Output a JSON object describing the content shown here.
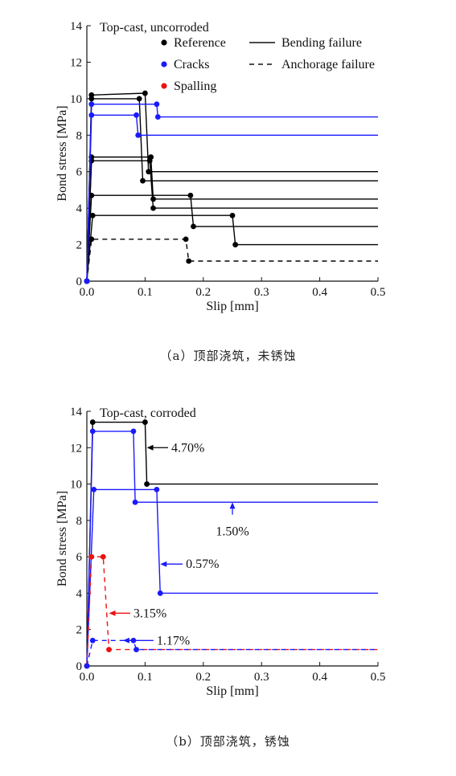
{
  "figure": {
    "captions": [
      "（a）顶部浇筑，未锈蚀",
      "（b）顶部浇筑，锈蚀"
    ]
  },
  "colors": {
    "reference": "#000000",
    "cracks": "#1a1aff",
    "spalling": "#ee1111"
  },
  "chart_data": [
    {
      "type": "line",
      "title": "Top-cast, uncorroded",
      "xlabel": "Slip [mm]",
      "ylabel": "Bond stress [MPa]",
      "xlim": [
        0,
        0.5
      ],
      "ylim": [
        0,
        14
      ],
      "xticks": [
        "0.0",
        "0.1",
        "0.2",
        "0.3",
        "0.4",
        "0.5"
      ],
      "yticks": [
        "0",
        "2",
        "4",
        "6",
        "8",
        "10",
        "12",
        "14"
      ],
      "grid": false,
      "legend": {
        "position": "top",
        "markers": [
          {
            "label": "Reference",
            "color_key": "reference"
          },
          {
            "label": "Cracks",
            "color_key": "cracks"
          },
          {
            "label": "Spalling",
            "color_key": "spalling"
          }
        ],
        "lines": [
          {
            "label": "Bending failure",
            "style": "solid"
          },
          {
            "label": "Anchorage failure",
            "style": "dashed"
          }
        ]
      },
      "series": [
        {
          "group": "reference",
          "style": "solid",
          "x": [
            0,
            0.008,
            0.1,
            0.106,
            0.5
          ],
          "y": [
            0,
            10.2,
            10.3,
            6.0,
            6.0
          ]
        },
        {
          "group": "reference",
          "style": "solid",
          "x": [
            0,
            0.008,
            0.09,
            0.096,
            0.5
          ],
          "y": [
            0,
            10.0,
            10.0,
            5.5,
            5.5
          ]
        },
        {
          "group": "reference",
          "style": "solid",
          "x": [
            0,
            0.008,
            0.11,
            0.114,
            0.5
          ],
          "y": [
            0,
            6.8,
            6.8,
            4.5,
            4.5
          ]
        },
        {
          "group": "reference",
          "style": "solid",
          "x": [
            0,
            0.008,
            0.108,
            0.114,
            0.5
          ],
          "y": [
            0,
            6.6,
            6.6,
            4.0,
            4.0
          ]
        },
        {
          "group": "reference",
          "style": "solid",
          "x": [
            0,
            0.008,
            0.178,
            0.183,
            0.5
          ],
          "y": [
            0,
            4.7,
            4.7,
            3.0,
            3.0
          ]
        },
        {
          "group": "reference",
          "style": "solid",
          "x": [
            0,
            0.01,
            0.25,
            0.255,
            0.5
          ],
          "y": [
            0,
            3.6,
            3.6,
            2.0,
            2.0
          ]
        },
        {
          "group": "reference",
          "style": "dashed",
          "x": [
            0,
            0.008,
            0.17,
            0.175,
            0.5
          ],
          "y": [
            0,
            2.3,
            2.3,
            1.1,
            1.1
          ]
        },
        {
          "group": "cracks",
          "style": "solid",
          "x": [
            0,
            0.008,
            0.12,
            0.122,
            0.5
          ],
          "y": [
            0,
            9.7,
            9.7,
            9.0,
            9.0
          ]
        },
        {
          "group": "cracks",
          "style": "solid",
          "x": [
            0,
            0.008,
            0.085,
            0.088,
            0.5
          ],
          "y": [
            0,
            9.1,
            9.1,
            8.0,
            8.0
          ]
        }
      ]
    },
    {
      "type": "line",
      "title": "Top-cast, corroded",
      "xlabel": "Slip [mm]",
      "ylabel": "Bond stress [MPa]",
      "xlim": [
        0,
        0.5
      ],
      "ylim": [
        0,
        14
      ],
      "xticks": [
        "0.0",
        "0.1",
        "0.2",
        "0.3",
        "0.4",
        "0.5"
      ],
      "yticks": [
        "0",
        "2",
        "4",
        "6",
        "8",
        "10",
        "12",
        "14"
      ],
      "grid": false,
      "series": [
        {
          "name": "4.70%",
          "group": "reference",
          "style": "solid",
          "x": [
            0,
            0.01,
            0.1,
            0.103,
            0.5
          ],
          "y": [
            0,
            13.4,
            13.4,
            10.0,
            10.0
          ]
        },
        {
          "name": "1.50%",
          "group": "cracks",
          "style": "solid",
          "x": [
            0,
            0.01,
            0.08,
            0.083,
            0.5
          ],
          "y": [
            0,
            12.9,
            12.9,
            9.0,
            9.0
          ]
        },
        {
          "name": "0.57%",
          "group": "cracks",
          "style": "solid",
          "x": [
            0,
            0.012,
            0.12,
            0.126,
            0.5
          ],
          "y": [
            0,
            9.7,
            9.7,
            4.0,
            4.0
          ]
        },
        {
          "name": "3.15%",
          "group": "spalling",
          "style": "dashed",
          "x": [
            0,
            0.008,
            0.028,
            0.038,
            0.5
          ],
          "y": [
            0,
            6.0,
            6.0,
            0.9,
            0.9
          ]
        },
        {
          "name": "1.17%",
          "group": "cracks",
          "style": "dashed",
          "x": [
            0,
            0.01,
            0.08,
            0.085,
            0.5
          ],
          "y": [
            0,
            1.4,
            1.4,
            0.9,
            0.9
          ]
        }
      ],
      "annotations": [
        {
          "text": "4.70%",
          "series": 0,
          "at": [
            0.103,
            12.0
          ],
          "label_at": [
            0.145,
            12.0
          ]
        },
        {
          "text": "1.50%",
          "series": 1,
          "at": [
            0.25,
            9.0
          ],
          "label_at": [
            0.25,
            7.7
          ]
        },
        {
          "text": "0.57%",
          "series": 2,
          "at": [
            0.126,
            5.6
          ],
          "label_at": [
            0.17,
            5.6
          ]
        },
        {
          "text": "3.15%",
          "series": 3,
          "at": [
            0.038,
            2.9
          ],
          "label_at": [
            0.08,
            2.9
          ]
        },
        {
          "text": "1.17%",
          "series": 4,
          "at": [
            0.062,
            1.4
          ],
          "label_at": [
            0.12,
            1.4
          ]
        }
      ]
    }
  ]
}
